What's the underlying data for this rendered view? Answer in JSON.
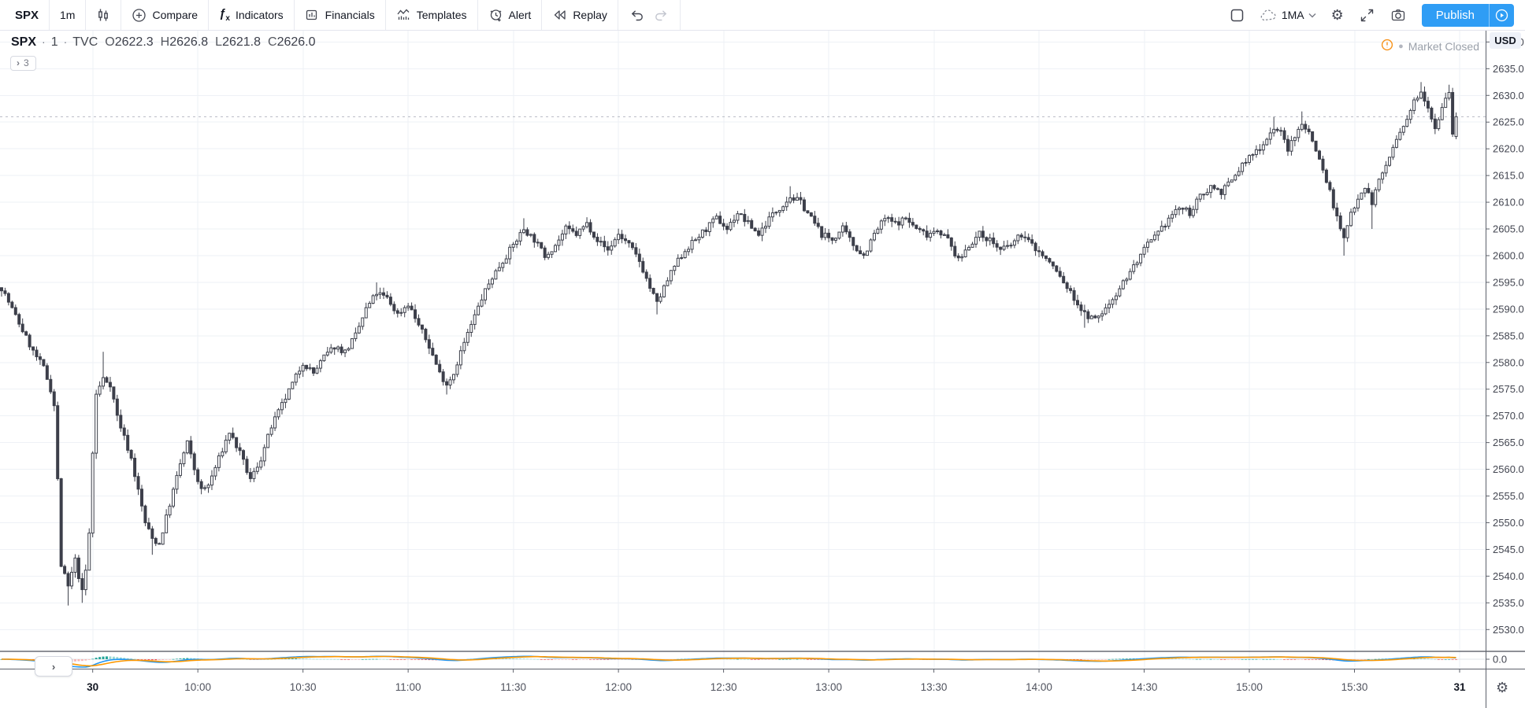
{
  "toolbar": {
    "symbol": "SPX",
    "interval": "1m",
    "items": {
      "compare": "Compare",
      "indicators": "Indicators",
      "financials": "Financials",
      "templates": "Templates",
      "alert": "Alert",
      "replay": "Replay"
    },
    "layout_name": "1MA",
    "publish_label": "Publish"
  },
  "legend": {
    "symbol": "SPX",
    "separator": "·",
    "interval": "1",
    "exchange": "TVC",
    "ohlc": [
      {
        "label": "O",
        "value": "2622.3"
      },
      {
        "label": "H",
        "value": "2626.8"
      },
      {
        "label": "L",
        "value": "2621.8"
      },
      {
        "label": "C",
        "value": "2626.0"
      }
    ],
    "collapsed_count": "3"
  },
  "status": {
    "market": "Market Closed"
  },
  "price_axis": {
    "currency": "USD",
    "tick_min": 2530,
    "tick_max": 2640,
    "tick_step": 5,
    "decimals": 1,
    "indicator_tick": "0.0"
  },
  "time_axis": {
    "labels": [
      {
        "text": "30",
        "bar": 26,
        "strong": true
      },
      {
        "text": "10:00",
        "bar": 56
      },
      {
        "text": "10:30",
        "bar": 86
      },
      {
        "text": "11:00",
        "bar": 116
      },
      {
        "text": "11:30",
        "bar": 146
      },
      {
        "text": "12:00",
        "bar": 176
      },
      {
        "text": "12:30",
        "bar": 206
      },
      {
        "text": "13:00",
        "bar": 236
      },
      {
        "text": "13:30",
        "bar": 266
      },
      {
        "text": "14:00",
        "bar": 296
      },
      {
        "text": "14:30",
        "bar": 326
      },
      {
        "text": "15:00",
        "bar": 356
      },
      {
        "text": "15:30",
        "bar": 386
      },
      {
        "text": "31",
        "bar": 416,
        "strong": true
      }
    ]
  },
  "chart_data": {
    "type": "candlestick",
    "symbol": "SPX",
    "timeframe": "1 minute",
    "bars_total": 416,
    "session_open_bar": 26,
    "ylim": [
      2526.8,
      2642.3
    ],
    "last_price_line": 2626.0,
    "last_bar": {
      "open": 2622.3,
      "high": 2626.8,
      "low": 2621.8,
      "close": 2626.0
    },
    "anchors": [
      [
        0,
        2594
      ],
      [
        3,
        2590
      ],
      [
        6,
        2586
      ],
      [
        9,
        2582
      ],
      [
        12,
        2579
      ],
      [
        14,
        2575
      ],
      [
        15,
        2572
      ],
      [
        16,
        2558
      ],
      [
        17,
        2542
      ],
      [
        19,
        2538
      ],
      [
        21,
        2543
      ],
      [
        23,
        2537
      ],
      [
        24,
        2541
      ],
      [
        25,
        2548
      ],
      [
        26,
        2563
      ],
      [
        27,
        2574
      ],
      [
        29,
        2577
      ],
      [
        31,
        2576
      ],
      [
        33,
        2570
      ],
      [
        35,
        2566
      ],
      [
        37,
        2562
      ],
      [
        39,
        2556
      ],
      [
        41,
        2550
      ],
      [
        43,
        2547
      ],
      [
        45,
        2546
      ],
      [
        47,
        2551
      ],
      [
        49,
        2556
      ],
      [
        51,
        2561
      ],
      [
        53,
        2565
      ],
      [
        55,
        2560
      ],
      [
        57,
        2556
      ],
      [
        59,
        2557
      ],
      [
        62,
        2562
      ],
      [
        65,
        2567
      ],
      [
        68,
        2563
      ],
      [
        71,
        2558
      ],
      [
        74,
        2562
      ],
      [
        77,
        2568
      ],
      [
        80,
        2572
      ],
      [
        83,
        2576
      ],
      [
        86,
        2580
      ],
      [
        89,
        2578
      ],
      [
        92,
        2581
      ],
      [
        95,
        2583
      ],
      [
        98,
        2582
      ],
      [
        101,
        2585
      ],
      [
        104,
        2590
      ],
      [
        107,
        2593
      ],
      [
        110,
        2592
      ],
      [
        113,
        2589
      ],
      [
        116,
        2591
      ],
      [
        119,
        2587
      ],
      [
        122,
        2583
      ],
      [
        125,
        2578
      ],
      [
        127,
        2576
      ],
      [
        129,
        2578
      ],
      [
        131,
        2582
      ],
      [
        134,
        2587
      ],
      [
        137,
        2592
      ],
      [
        140,
        2596
      ],
      [
        143,
        2599
      ],
      [
        146,
        2602
      ],
      [
        149,
        2605
      ],
      [
        152,
        2603
      ],
      [
        155,
        2600
      ],
      [
        158,
        2602
      ],
      [
        161,
        2605
      ],
      [
        164,
        2604
      ],
      [
        167,
        2606
      ],
      [
        170,
        2603
      ],
      [
        173,
        2601
      ],
      [
        176,
        2604
      ],
      [
        179,
        2602
      ],
      [
        182,
        2599
      ],
      [
        185,
        2594
      ],
      [
        187,
        2591
      ],
      [
        189,
        2594
      ],
      [
        192,
        2598
      ],
      [
        195,
        2601
      ],
      [
        198,
        2603
      ],
      [
        201,
        2605
      ],
      [
        204,
        2607
      ],
      [
        207,
        2605
      ],
      [
        210,
        2608
      ],
      [
        213,
        2606
      ],
      [
        216,
        2604
      ],
      [
        219,
        2607
      ],
      [
        222,
        2609
      ],
      [
        225,
        2611
      ],
      [
        228,
        2610
      ],
      [
        231,
        2607
      ],
      [
        234,
        2604
      ],
      [
        237,
        2603
      ],
      [
        240,
        2605
      ],
      [
        243,
        2602
      ],
      [
        246,
        2600
      ],
      [
        249,
        2604
      ],
      [
        252,
        2607
      ],
      [
        255,
        2606
      ],
      [
        258,
        2607
      ],
      [
        261,
        2605
      ],
      [
        264,
        2604
      ],
      [
        267,
        2605
      ],
      [
        270,
        2603
      ],
      [
        273,
        2599
      ],
      [
        276,
        2602
      ],
      [
        279,
        2604
      ],
      [
        282,
        2603
      ],
      [
        285,
        2601
      ],
      [
        288,
        2602
      ],
      [
        291,
        2604
      ],
      [
        294,
        2602
      ],
      [
        297,
        2600
      ],
      [
        300,
        2598
      ],
      [
        303,
        2595
      ],
      [
        306,
        2592
      ],
      [
        309,
        2589
      ],
      [
        312,
        2588
      ],
      [
        315,
        2590
      ],
      [
        318,
        2593
      ],
      [
        321,
        2596
      ],
      [
        324,
        2599
      ],
      [
        327,
        2602
      ],
      [
        330,
        2604
      ],
      [
        333,
        2607
      ],
      [
        336,
        2609
      ],
      [
        339,
        2608
      ],
      [
        342,
        2611
      ],
      [
        345,
        2613
      ],
      [
        348,
        2612
      ],
      [
        351,
        2614
      ],
      [
        354,
        2617
      ],
      [
        357,
        2619
      ],
      [
        360,
        2621
      ],
      [
        363,
        2624
      ],
      [
        365,
        2623
      ],
      [
        367,
        2620
      ],
      [
        369,
        2622
      ],
      [
        371,
        2625
      ],
      [
        373,
        2623
      ],
      [
        375,
        2620
      ],
      [
        377,
        2616
      ],
      [
        379,
        2612
      ],
      [
        381,
        2607
      ],
      [
        383,
        2603
      ],
      [
        385,
        2608
      ],
      [
        387,
        2611
      ],
      [
        389,
        2613
      ],
      [
        391,
        2610
      ],
      [
        393,
        2614
      ],
      [
        395,
        2617
      ],
      [
        397,
        2620
      ],
      [
        399,
        2623
      ],
      [
        401,
        2625
      ],
      [
        403,
        2629
      ],
      [
        405,
        2631
      ],
      [
        407,
        2628
      ],
      [
        409,
        2624
      ],
      [
        411,
        2628
      ],
      [
        413,
        2631
      ],
      [
        414,
        2623
      ],
      [
        415,
        2626
      ]
    ],
    "high_wicks": [
      [
        29,
        2582
      ],
      [
        107,
        2595
      ],
      [
        149,
        2607
      ],
      [
        225,
        2613
      ],
      [
        363,
        2626
      ],
      [
        371,
        2627
      ],
      [
        405,
        2632.5
      ],
      [
        413,
        2632
      ]
    ],
    "low_wicks": [
      [
        19,
        2534.5
      ],
      [
        23,
        2535
      ],
      [
        43,
        2544
      ],
      [
        127,
        2574
      ],
      [
        187,
        2589
      ],
      [
        309,
        2586.5
      ],
      [
        383,
        2600
      ],
      [
        391,
        2605
      ]
    ],
    "indicator": {
      "type": "macd",
      "fast": 12,
      "slow": 26,
      "signal": 9,
      "zero_label": "0.0",
      "colors": {
        "macd_line": "#2196f3",
        "signal_line": "#ff9800",
        "hist_up": "#26a69a",
        "hist_up_faded": "#9bd8d2",
        "hist_down": "#ef5350",
        "hist_down_faded": "#f6b6b4"
      }
    }
  },
  "icons": {
    "gear": "⚙",
    "chevron_right": "›",
    "bullet": "●"
  },
  "colors": {
    "accent_blue": "#2f9df5",
    "candle": "#3c3f4a",
    "grid": "#eef1f6",
    "axis_line": "#5d616b",
    "pane_separator": "#4a4e59",
    "text_dark": "#131722",
    "text_gray": "#434651",
    "text_muted": "#787b86",
    "warn_orange": "#f7931a",
    "last_price_line": "#b7bac4",
    "zero_line": "#e2e4ea"
  }
}
